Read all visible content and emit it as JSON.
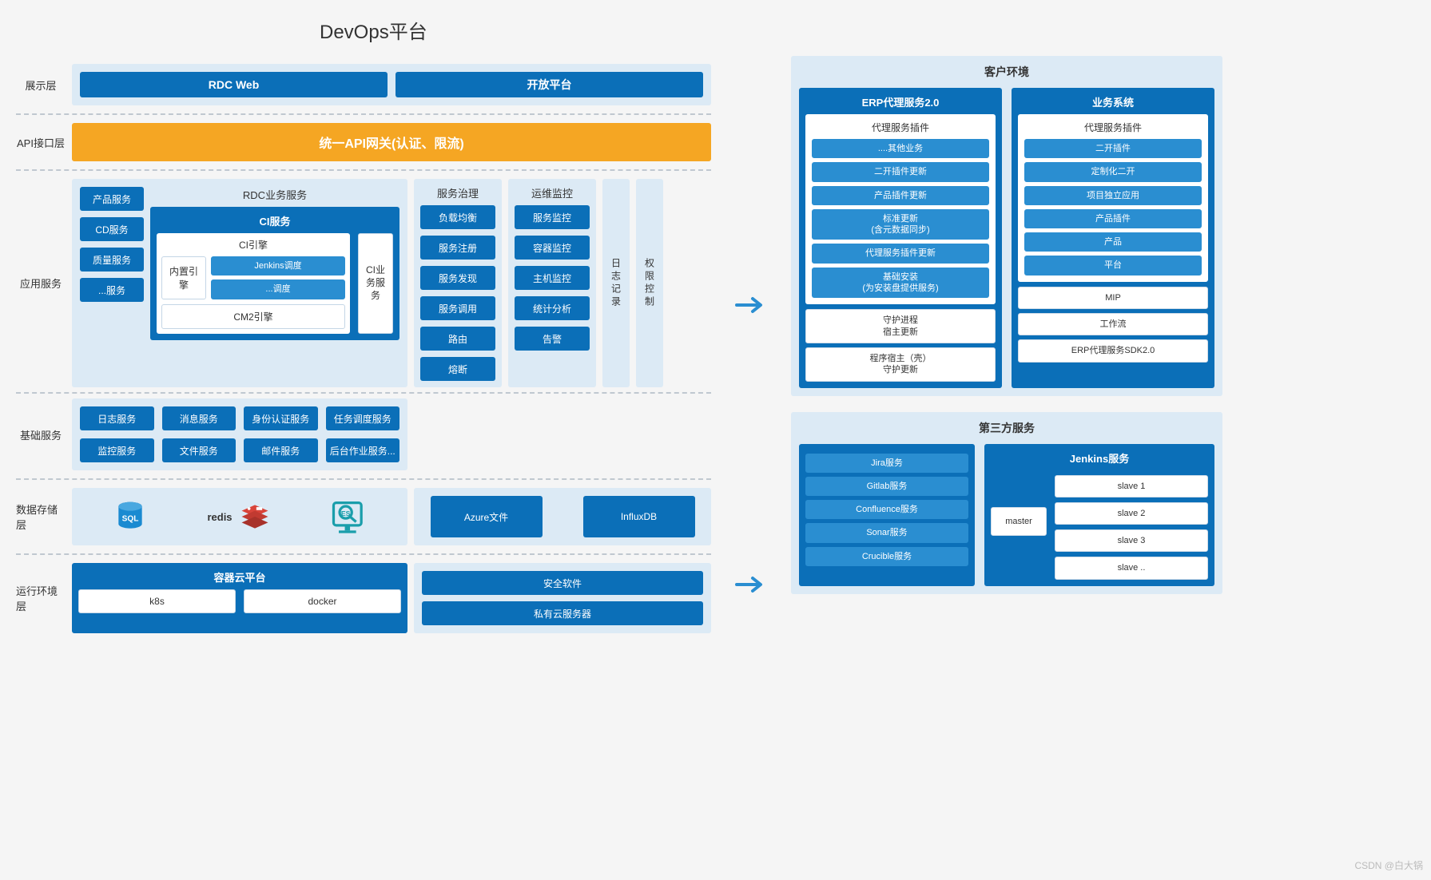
{
  "type": "diagram",
  "title": "DevOps平台",
  "colors": {
    "node_dark": "#0b6fb8",
    "chip_blue": "#2a8ed1",
    "panel_light": "#dceaf5",
    "api_orange": "#f5a623",
    "page_bg": "#f5f5f5",
    "border_gray": "#c4d6e6",
    "dash_gray": "#c0c8d0",
    "text": "#333333",
    "white": "#ffffff",
    "redis_red": "#d9443a",
    "es_teal": "#1a9eab"
  },
  "layers": {
    "presentation": {
      "label": "展示层",
      "items": [
        "RDC Web",
        "开放平台"
      ]
    },
    "api": {
      "label": "API接口层",
      "gateway": "统一API网关(认证、限流)"
    },
    "app": {
      "label": "应用服务",
      "sidebar": [
        "产品服务",
        "CD服务",
        "质量服务",
        "...服务"
      ],
      "rdc": {
        "title": "RDC业务服务",
        "ci_service": "CI服务",
        "ci_engine": "CI引擎",
        "builtin_engine": "内置引擎",
        "builtin_items": [
          "Jenkins调度",
          "...调度"
        ],
        "cm2": "CM2引擎",
        "ci_biz": "CI业务服务"
      },
      "governance": {
        "title": "服务治理",
        "items": [
          "负载均衡",
          "服务注册",
          "服务发现",
          "服务调用",
          "路由",
          "熔断"
        ]
      },
      "ops": {
        "title": "运维监控",
        "items": [
          "服务监控",
          "容器监控",
          "主机监控",
          "统计分析",
          "告警"
        ]
      },
      "log": "日志记录",
      "perm": "权限控制"
    },
    "base": {
      "label": "基础服务",
      "items": [
        "日志服务",
        "消息服务",
        "身份认证服务",
        "任务调度服务",
        "监控服务",
        "文件服务",
        "邮件服务",
        "后台作业服务..."
      ]
    },
    "storage": {
      "label": "数据存储层",
      "icons": {
        "sql": "SQL",
        "redis": "redis",
        "es": "ES"
      },
      "right": [
        "Azure文件",
        "InfluxDB"
      ]
    },
    "runtime": {
      "label": "运行环境层",
      "container_cloud": {
        "title": "容器云平台",
        "items": [
          "k8s",
          "docker"
        ]
      },
      "right": [
        "安全软件",
        "私有云服务器"
      ]
    }
  },
  "customer": {
    "title": "客户环境",
    "erp": {
      "title": "ERP代理服务2.0",
      "plugin_title": "代理服务插件",
      "plugins": [
        "....其他业务",
        "二开插件更新",
        "产品插件更新",
        "标准更新\n(含元数据同步)",
        "代理服务插件更新",
        "基础安装\n(为安装盘提供服务)"
      ],
      "extras": [
        "守护进程\n宿主更新",
        "程序宿主（壳）\n守护更新"
      ]
    },
    "biz": {
      "title": "业务系统",
      "plugin_title": "代理服务插件",
      "plugins": [
        "二开插件",
        "定制化二开",
        "项目独立应用",
        "产品插件",
        "产品",
        "平台"
      ],
      "extras": [
        "MIP",
        "工作流",
        "ERP代理服务SDK2.0"
      ]
    }
  },
  "third_party": {
    "title": "第三方服务",
    "left": [
      "Jira服务",
      "Gitlab服务",
      "Confluence服务",
      "Sonar服务",
      "Crucible服务"
    ],
    "jenkins": {
      "title": "Jenkins服务",
      "master": "master",
      "slaves": [
        "slave 1",
        "slave 2",
        "slave 3",
        "slave .."
      ]
    }
  },
  "watermark": "CSDN @白大锅"
}
